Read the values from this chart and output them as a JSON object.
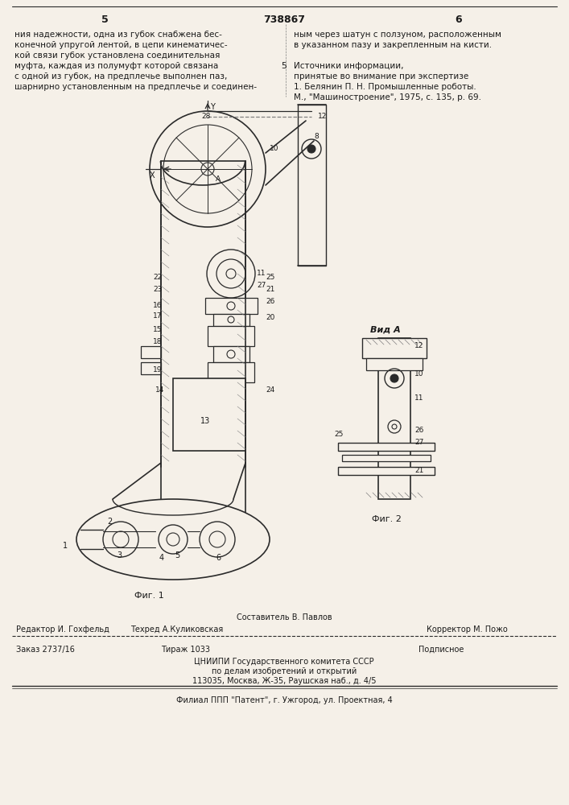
{
  "page_number_left": "5",
  "page_number_center": "738867",
  "page_number_right": "6",
  "text_left_col": [
    "ния надежности, одна из губок снабжена бес-",
    "конечной упругой лентой, в цепи кинематичес-",
    "кой связи губок установлена соединительная",
    "муфта, каждая из полумуфт которой связана",
    "с одной из губок, на предплечье выполнен паз,",
    "шарнирно установленным на предплечье и соединен-"
  ],
  "text_right_col": [
    "ным через шатун с ползуном, расположенным",
    "в указанном пазу и закрепленным на кисти.",
    "",
    "Источники информации,",
    "принятые во внимание при экспертизе",
    "1. Белянин П. Н. Промышленные роботы.",
    "М., \"Машиностроение\", 1975, с. 135, р. 69."
  ],
  "col_number_5": "5",
  "fig1_label": "Фиг. 1",
  "fig2_label": "Фиг. 2",
  "vid_a_label": "Вид А",
  "composer_line": "Составитель В. Павлов",
  "editor_label": "Редактор И. Гохфельд",
  "techred_label": "Техред А.Куликовская",
  "corrector_label": "Корректор М. Пожо",
  "order_label": "Заказ 2737/16",
  "tirazh_label": "Тираж 1033",
  "podpisnoe_label": "Подписное",
  "cniipи_line1": "ЦНИИПИ Государственного комитета СССР",
  "cniipи_line2": "по делам изобретений и открытий",
  "cniipи_line3": "113035, Москва, Ж-35, Раушская наб., д. 4/5",
  "filial_line": "Филиал ППП \"Патент\", г. Ужгород, ул. Проектная, 4",
  "bg_color": "#f5f0e8",
  "text_color": "#1a1a1a",
  "line_color": "#2a2a2a"
}
